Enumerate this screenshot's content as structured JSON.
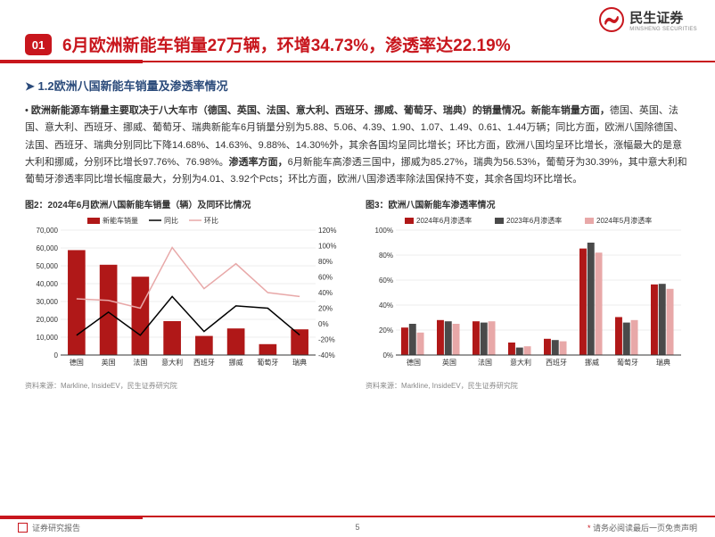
{
  "logo": {
    "name": "民生证券",
    "sub": "MINSHENG SECURITIES"
  },
  "badge": "01",
  "title": "6月欧洲新能车销量27万辆，环增34.73%，渗透率达22.19%",
  "subtitle": "1.2欧洲八国新能车销量及渗透率情况",
  "body_lead": "欧洲新能源车销量主要取决于八大车市（德国、英国、法国、意大利、西班牙、挪威、葡萄牙、瑞典）的销量情况。新能车销量方面，",
  "body_rest": "德国、英国、法国、意大利、西班牙、挪威、葡萄牙、瑞典新能车6月销量分别为5.88、5.06、4.39、1.90、1.07、1.49、0.61、1.44万辆；同比方面，欧洲八国除德国、法国、西班牙、瑞典分别同比下降14.68%、14.63%、9.88%、14.30%外，其余各国均呈同比增长；环比方面，欧洲八国均呈环比增长，涨幅最大的是意大利和挪威，分别环比增长97.76%、76.98%。",
  "body_lead2": "渗透率方面，",
  "body_rest2": "6月新能车高渗透三国中，挪威为85.27%，瑞典为56.53%，葡萄牙为30.39%，其中意大利和葡萄牙渗透率同比增长幅度最大，分别为4.01、3.92个Pcts；环比方面，欧洲八国渗透率除法国保持不变，其余各国均环比增长。",
  "chart2": {
    "title": "图2：2024年6月欧洲八国新能车销量（辆）及同环比情况",
    "source": "资料来源：Markline, InsideEV，民生证券研究院",
    "categories": [
      "德国",
      "英国",
      "法国",
      "意大利",
      "西班牙",
      "挪威",
      "葡萄牙",
      "瑞典"
    ],
    "bars": [
      58800,
      50600,
      43900,
      19000,
      10700,
      14900,
      6100,
      14400
    ],
    "yoy": [
      -14.68,
      15,
      -14.63,
      35,
      -9.88,
      23,
      20,
      -14.3
    ],
    "mom": [
      32,
      30,
      20,
      97.76,
      45,
      76.98,
      40,
      35
    ],
    "y1_max": 70000,
    "y1_step": 10000,
    "y2_min": -40,
    "y2_max": 120,
    "y2_step": 20,
    "colors": {
      "bar": "#b01818",
      "yoy": "#000000",
      "mom": "#e8a8a8",
      "grid": "#d9d9d9",
      "axis": "#333",
      "bg": "#ffffff"
    },
    "legend": [
      "新能车销量",
      "同比",
      "环比"
    ],
    "font_size": 8
  },
  "chart3": {
    "title": "图3：欧洲八国新能车渗透率情况",
    "source": "资料来源：Markline, InsideEV，民生证券研究院",
    "categories": [
      "德国",
      "英国",
      "法国",
      "意大利",
      "西班牙",
      "挪威",
      "葡萄牙",
      "瑞典"
    ],
    "series": [
      {
        "name": "2024年6月渗透率",
        "color": "#b01818",
        "values": [
          22,
          28,
          27,
          10,
          13,
          85.27,
          30.39,
          56.53
        ]
      },
      {
        "name": "2023年6月渗透率",
        "color": "#4a4a4a",
        "values": [
          25,
          27,
          26,
          6,
          12,
          90,
          26,
          57
        ]
      },
      {
        "name": "2024年5月渗透率",
        "color": "#e8a8a8",
        "values": [
          18,
          25,
          27,
          7,
          11,
          82,
          28,
          53
        ]
      }
    ],
    "y_max": 100,
    "y_step": 20,
    "colors": {
      "grid": "#d9d9d9",
      "axis": "#333",
      "bg": "#ffffff"
    },
    "font_size": 8
  },
  "footer": {
    "left": "证券研究报告",
    "page": "5",
    "right": "请务必阅读最后一页免责声明"
  }
}
